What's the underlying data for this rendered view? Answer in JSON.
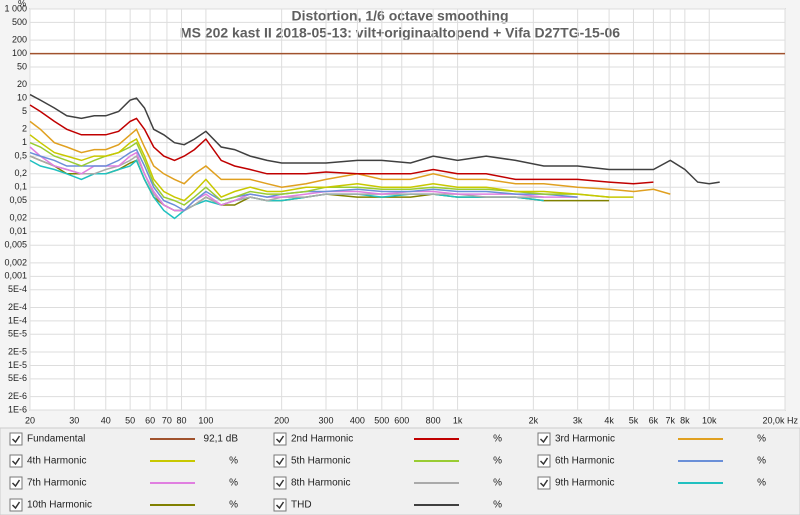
{
  "chart_data": {
    "type": "line",
    "title": "Distortion, 1/6 octave smoothing",
    "subtitle": "MS 202 kast II 2018-05-13: vilt+originaaltopend + Vifa D27TG-15-06",
    "y_unit": "%",
    "xscale": "log",
    "yscale": "log",
    "grid": true,
    "xlim": [
      20,
      20000
    ],
    "ylim": [
      1e-06,
      1000
    ],
    "xticks": [
      20,
      30,
      40,
      50,
      60,
      70,
      80,
      100,
      200,
      300,
      400,
      500,
      600,
      800,
      {
        "value": 1000,
        "label": "1k"
      },
      {
        "value": 2000,
        "label": "2k"
      },
      {
        "value": 3000,
        "label": "3k"
      },
      {
        "value": 4000,
        "label": "4k"
      },
      {
        "value": 5000,
        "label": "5k"
      },
      {
        "value": 6000,
        "label": "6k"
      },
      {
        "value": 7000,
        "label": "7k"
      },
      {
        "value": 8000,
        "label": "8k"
      },
      {
        "value": 10000,
        "label": "10k"
      },
      {
        "value": 20000,
        "label": "20,0k Hz"
      }
    ],
    "yticks": [
      {
        "value": 1000,
        "label": "1 000"
      },
      500,
      200,
      100,
      50,
      20,
      10,
      5,
      2,
      1,
      {
        "value": 0.5,
        "label": "0,5"
      },
      {
        "value": 0.2,
        "label": "0,2"
      },
      {
        "value": 0.1,
        "label": "0,1"
      },
      {
        "value": 0.05,
        "label": "0,05"
      },
      {
        "value": 0.02,
        "label": "0,02"
      },
      {
        "value": 0.01,
        "label": "0,01"
      },
      {
        "value": 0.005,
        "label": "0,005"
      },
      {
        "value": 0.002,
        "label": "0,002"
      },
      {
        "value": 0.001,
        "label": "0,001"
      },
      {
        "value": 0.0005,
        "label": "5E-4"
      },
      {
        "value": 0.0002,
        "label": "2E-4"
      },
      {
        "value": 0.0001,
        "label": "1E-4"
      },
      {
        "value": 5e-05,
        "label": "5E-5"
      },
      {
        "value": 2e-05,
        "label": "2E-5"
      },
      {
        "value": 1e-05,
        "label": "1E-5"
      },
      {
        "value": 5e-06,
        "label": "5E-6"
      },
      {
        "value": 2e-06,
        "label": "2E-6"
      },
      {
        "value": 1e-06,
        "label": "1E-6"
      }
    ],
    "x": [
      20,
      22,
      25,
      28,
      32,
      36,
      40,
      45,
      50,
      53,
      57,
      62,
      68,
      75,
      82,
      90,
      100,
      115,
      130,
      150,
      175,
      200,
      250,
      300,
      400,
      500,
      650,
      800,
      1000,
      1300,
      1700,
      2200,
      3000,
      4000,
      5000,
      6000,
      7000,
      8000,
      9000,
      10000,
      11000
    ],
    "series": [
      {
        "name": "Fundamental",
        "color": "#a0522d",
        "readout": "92,1 dB",
        "x": [
          20,
          20000
        ],
        "values": [
          100,
          100
        ]
      },
      {
        "name": "2nd Harmonic",
        "color": "#c00000",
        "readout": "%",
        "values": [
          7,
          5,
          3,
          2,
          1.5,
          1.5,
          1.5,
          1.8,
          3,
          3.5,
          2,
          0.8,
          0.5,
          0.4,
          0.5,
          0.7,
          1.2,
          0.4,
          0.3,
          0.25,
          0.2,
          0.2,
          0.2,
          0.22,
          0.2,
          0.2,
          0.2,
          0.25,
          0.2,
          0.2,
          0.15,
          0.15,
          0.15,
          0.13,
          0.12,
          0.13,
          null,
          null,
          null,
          null,
          null
        ]
      },
      {
        "name": "3rd Harmonic",
        "color": "#e0a020",
        "readout": "%",
        "values": [
          3,
          2,
          1,
          0.8,
          0.6,
          0.7,
          0.7,
          0.9,
          1.5,
          2,
          0.8,
          0.3,
          0.2,
          0.15,
          0.12,
          0.2,
          0.3,
          0.15,
          0.15,
          0.15,
          0.12,
          0.1,
          0.12,
          0.15,
          0.2,
          0.15,
          0.15,
          0.2,
          0.15,
          0.15,
          0.12,
          0.12,
          0.1,
          0.09,
          0.08,
          0.09,
          0.07,
          null,
          null,
          null,
          null
        ]
      },
      {
        "name": "4th Harmonic",
        "color": "#c8c800",
        "readout": "%",
        "values": [
          1.5,
          1,
          0.6,
          0.5,
          0.4,
          0.5,
          0.5,
          0.6,
          1,
          1.2,
          0.5,
          0.15,
          0.08,
          0.06,
          0.05,
          0.08,
          0.15,
          0.06,
          0.08,
          0.1,
          0.08,
          0.08,
          0.1,
          0.1,
          0.12,
          0.1,
          0.1,
          0.12,
          0.1,
          0.1,
          0.08,
          0.08,
          0.07,
          0.06,
          0.06,
          null,
          null,
          null,
          null,
          null,
          null
        ]
      },
      {
        "name": "5th Harmonic",
        "color": "#99cc33",
        "readout": "%",
        "values": [
          1,
          0.8,
          0.5,
          0.4,
          0.3,
          0.4,
          0.5,
          0.6,
          0.8,
          1,
          0.4,
          0.12,
          0.06,
          0.05,
          0.04,
          0.06,
          0.1,
          0.05,
          0.06,
          0.08,
          0.07,
          0.07,
          0.08,
          0.1,
          0.1,
          0.09,
          0.09,
          0.1,
          0.09,
          0.09,
          0.08,
          0.07,
          0.07,
          0.06,
          null,
          null,
          null,
          null,
          null,
          null,
          null
        ]
      },
      {
        "name": "6th Harmonic",
        "color": "#6a8fd8",
        "readout": "%",
        "values": [
          0.6,
          0.5,
          0.4,
          0.3,
          0.3,
          0.3,
          0.3,
          0.4,
          0.6,
          0.7,
          0.3,
          0.1,
          0.05,
          0.04,
          0.03,
          0.05,
          0.08,
          0.05,
          0.06,
          0.07,
          0.06,
          0.07,
          0.08,
          0.08,
          0.09,
          0.08,
          0.08,
          0.09,
          0.08,
          0.08,
          0.07,
          0.07,
          0.06,
          null,
          null,
          null,
          null,
          null,
          null,
          null,
          null
        ]
      },
      {
        "name": "7th Harmonic",
        "color": "#e07fe0",
        "readout": "%",
        "values": [
          0.8,
          0.5,
          0.3,
          0.25,
          0.2,
          0.3,
          0.3,
          0.3,
          0.5,
          0.6,
          0.2,
          0.08,
          0.04,
          0.03,
          0.03,
          0.05,
          0.07,
          0.04,
          0.05,
          0.07,
          0.06,
          0.06,
          0.07,
          0.08,
          0.08,
          0.07,
          0.08,
          0.08,
          0.07,
          0.07,
          0.07,
          0.06,
          0.06,
          null,
          null,
          null,
          null,
          null,
          null,
          null,
          null
        ]
      },
      {
        "name": "8th Harmonic",
        "color": "#aaaaaa",
        "readout": "%",
        "values": [
          0.5,
          0.4,
          0.3,
          0.25,
          0.2,
          0.2,
          0.25,
          0.3,
          0.4,
          0.5,
          0.2,
          0.07,
          0.04,
          0.03,
          0.03,
          0.04,
          0.06,
          0.04,
          0.05,
          0.06,
          0.05,
          0.06,
          0.06,
          0.07,
          0.07,
          0.07,
          0.07,
          0.07,
          0.07,
          0.06,
          0.06,
          0.06,
          null,
          null,
          null,
          null,
          null,
          null,
          null,
          null,
          null
        ]
      },
      {
        "name": "9th Harmonic",
        "color": "#20c0c0",
        "readout": "%",
        "values": [
          0.4,
          0.3,
          0.25,
          0.2,
          0.15,
          0.2,
          0.2,
          0.25,
          0.3,
          0.4,
          0.15,
          0.06,
          0.03,
          0.02,
          0.03,
          0.04,
          0.05,
          0.04,
          0.05,
          0.06,
          0.05,
          0.05,
          0.06,
          0.07,
          0.07,
          0.06,
          0.07,
          0.07,
          0.06,
          0.06,
          0.06,
          0.05,
          null,
          null,
          null,
          null,
          null,
          null,
          null,
          null,
          null
        ]
      },
      {
        "name": "10th Harmonic",
        "color": "#808000",
        "readout": "%",
        "values": [
          0.5,
          0.4,
          0.3,
          0.2,
          0.2,
          0.2,
          0.2,
          0.25,
          0.35,
          0.4,
          0.15,
          0.06,
          0.04,
          0.03,
          0.03,
          0.04,
          0.06,
          0.04,
          0.04,
          0.06,
          0.05,
          0.05,
          0.06,
          0.07,
          0.06,
          0.06,
          0.06,
          0.07,
          0.06,
          0.06,
          0.06,
          0.05,
          0.05,
          0.05,
          null,
          null,
          null,
          null,
          null,
          null,
          null
        ]
      },
      {
        "name": "THD",
        "color": "#404040",
        "readout": "%",
        "values": [
          12,
          9,
          6,
          4,
          3.5,
          4,
          4,
          5,
          9,
          10,
          6,
          2,
          1.5,
          1,
          0.9,
          1.2,
          1.8,
          0.8,
          0.7,
          0.5,
          0.4,
          0.35,
          0.35,
          0.35,
          0.4,
          0.4,
          0.35,
          0.5,
          0.4,
          0.5,
          0.4,
          0.3,
          0.3,
          0.25,
          0.25,
          0.25,
          0.4,
          0.25,
          0.13,
          0.12,
          0.13
        ]
      }
    ]
  }
}
